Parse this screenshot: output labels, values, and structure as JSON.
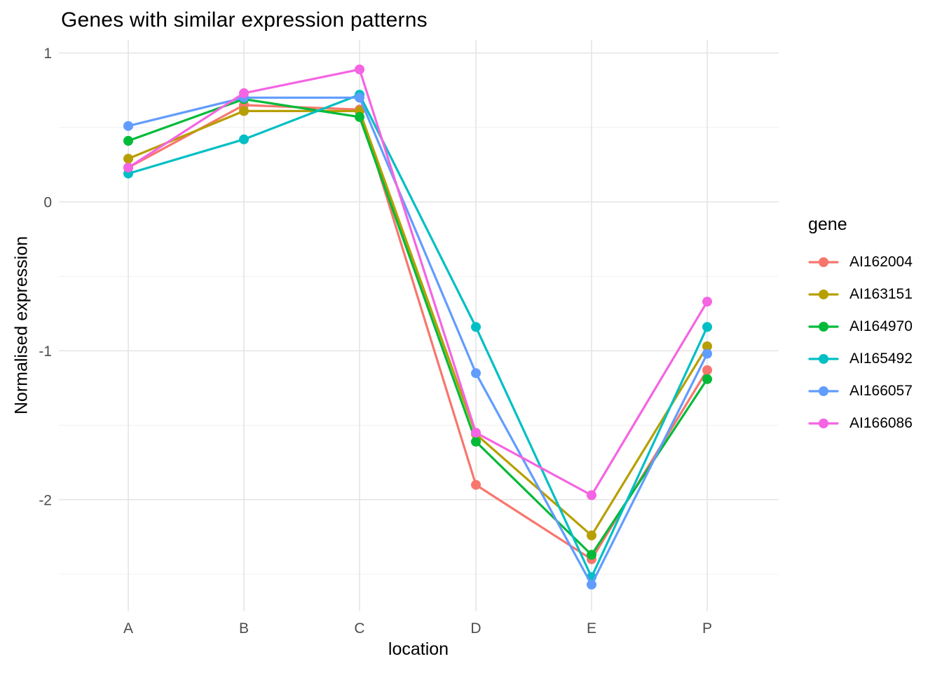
{
  "title": "Genes with similar expression patterns",
  "colors": {
    "background": "#FFFFFF",
    "grid_major": "#E4E4E4",
    "grid_minor": "#F0F0F0",
    "tick_label": "#4D4D4D",
    "text": "#000000"
  },
  "chart_data": {
    "type": "line",
    "title": "Genes with similar expression patterns",
    "xlabel": "location",
    "ylabel": "Normalised expression",
    "categories": [
      "A",
      "B",
      "C",
      "D",
      "E",
      "P"
    ],
    "y_major_ticks": [
      1,
      0,
      -1,
      -2
    ],
    "y_minor_ticks": [
      0.5,
      -0.5,
      -1.5,
      -2.5
    ],
    "ylim": [
      -2.75,
      1.09
    ],
    "grid": "on",
    "legend_title": "gene",
    "legend_position": "right",
    "series": [
      {
        "name": "AI162004",
        "color": "#F8766D",
        "values": [
          0.23,
          0.65,
          0.62,
          -1.9,
          -2.4,
          -1.13
        ]
      },
      {
        "name": "AI163151",
        "color": "#B79F00",
        "values": [
          0.29,
          0.61,
          0.61,
          -1.56,
          -2.24,
          -0.97
        ]
      },
      {
        "name": "AI164970",
        "color": "#00BA38",
        "values": [
          0.41,
          0.69,
          0.57,
          -1.61,
          -2.37,
          -1.19
        ]
      },
      {
        "name": "AI165492",
        "color": "#00BFC4",
        "values": [
          0.19,
          0.42,
          0.72,
          -0.84,
          -2.52,
          -0.84
        ]
      },
      {
        "name": "AI166057",
        "color": "#619CFF",
        "values": [
          0.51,
          0.7,
          0.7,
          -1.15,
          -2.57,
          -1.02
        ]
      },
      {
        "name": "AI166086",
        "color": "#F564E2",
        "values": [
          0.23,
          0.73,
          0.89,
          -1.55,
          -1.97,
          -0.67
        ]
      }
    ]
  }
}
